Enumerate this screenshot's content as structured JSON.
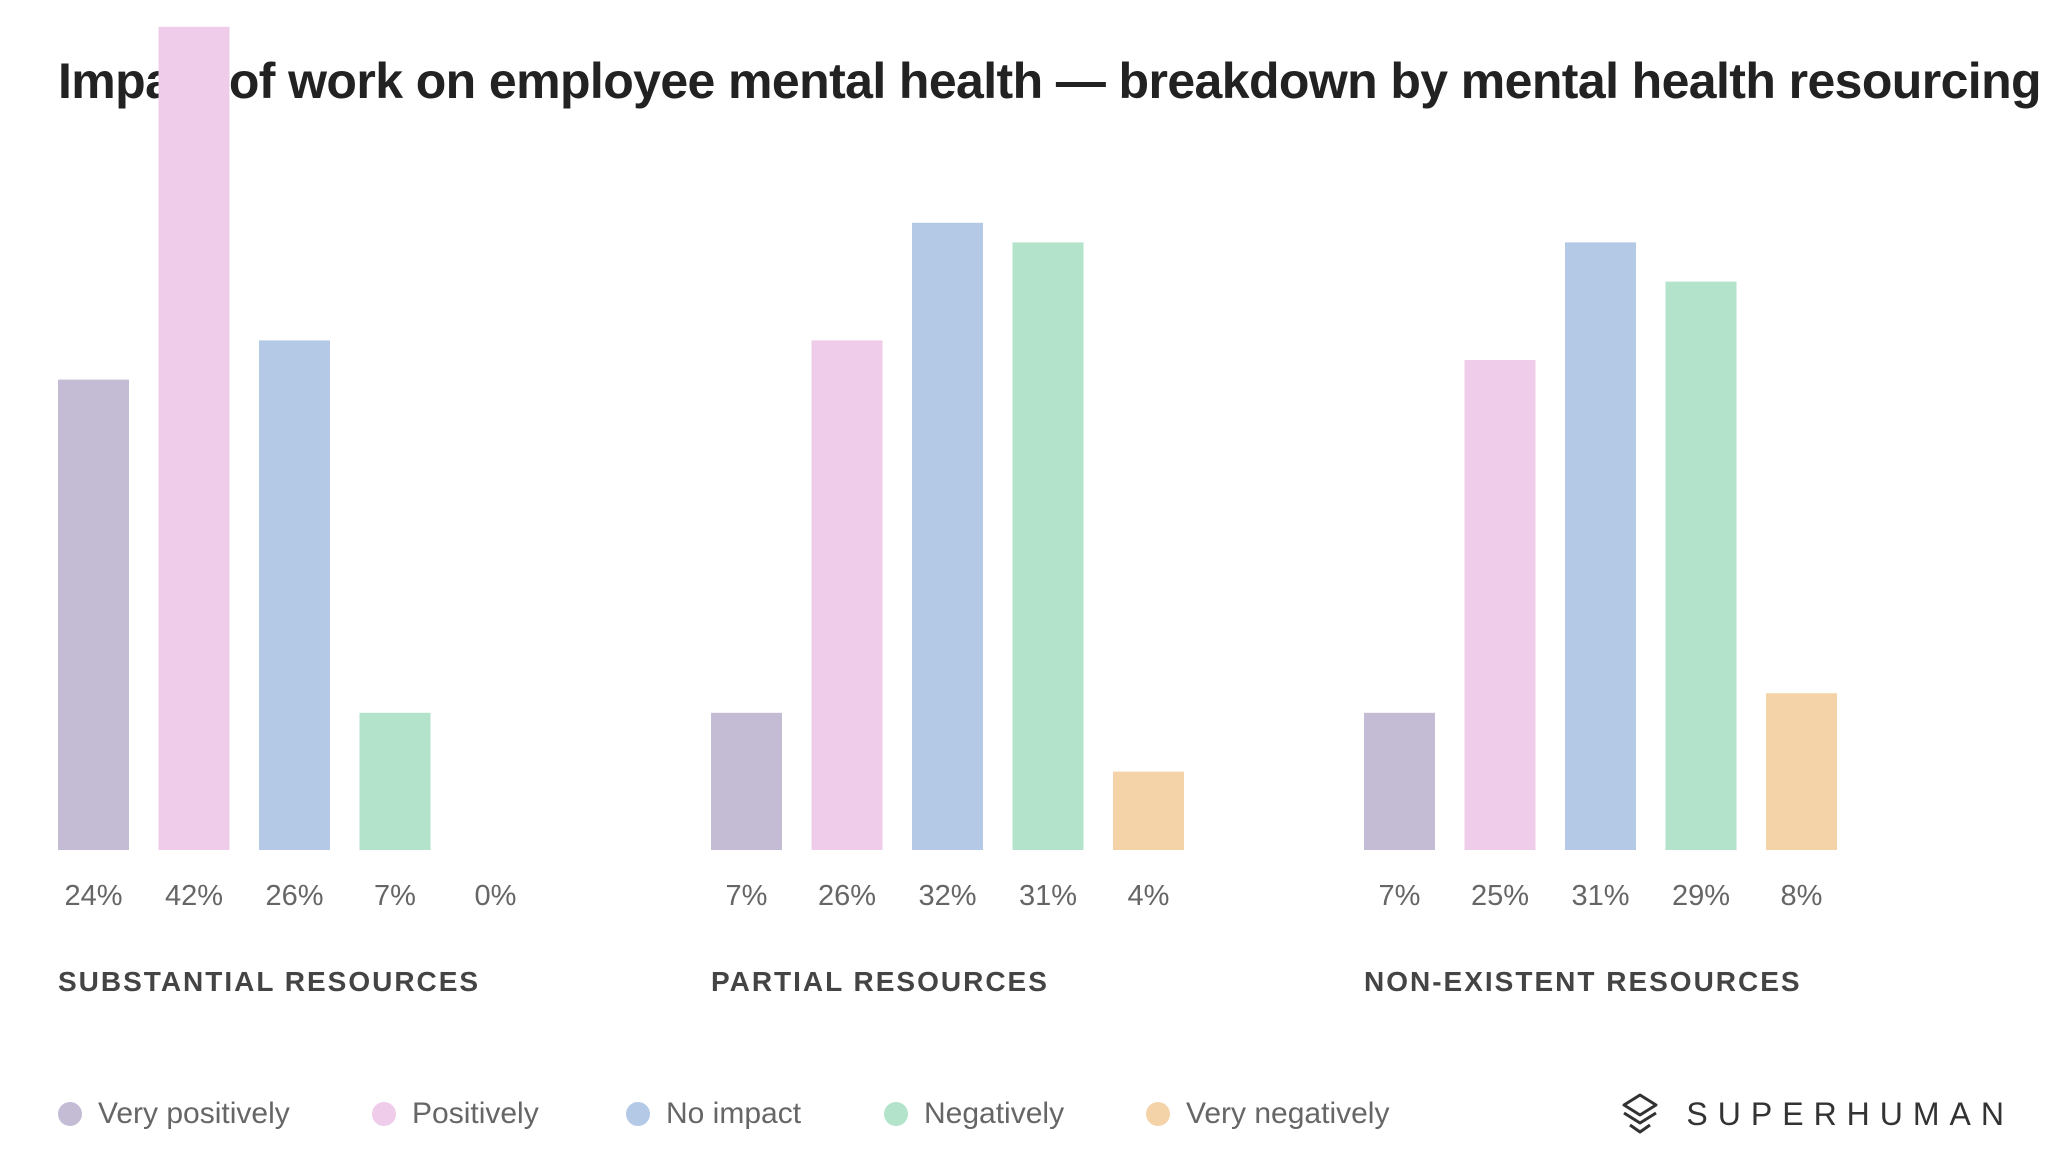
{
  "title": "Impact of work on employee mental health — breakdown by mental health resourcing",
  "brand": {
    "name": "SUPERHUMAN",
    "logo_icon": "superhuman-logo-icon"
  },
  "colors": {
    "Very positively": "#c4bcd4",
    "Positively": "#efcce9",
    "No impact": "#b3c9e5",
    "Negatively": "#b3e3ca",
    "Very negatively": "#f5d3a9",
    "value_label": "#666666",
    "group_label": "#444444"
  },
  "legend": [
    {
      "label": "Very positively"
    },
    {
      "label": "Positively"
    },
    {
      "label": "No impact"
    },
    {
      "label": "Negatively"
    },
    {
      "label": "Very negatively"
    }
  ],
  "chart_data": [
    {
      "type": "bar",
      "title": "SUBSTANTIAL RESOURCES",
      "categories": [
        "Very positively",
        "Positively",
        "No impact",
        "Negatively",
        "Very negatively"
      ],
      "values": [
        24,
        42,
        26,
        7,
        0
      ],
      "value_labels": [
        "24%",
        "42%",
        "26%",
        "7%",
        "0%"
      ],
      "unit": "%",
      "grid": false
    },
    {
      "type": "bar",
      "title": "PARTIAL RESOURCES",
      "categories": [
        "Very positively",
        "Positively",
        "No impact",
        "Negatively",
        "Very negatively"
      ],
      "values": [
        7,
        26,
        32,
        31,
        4
      ],
      "value_labels": [
        "7%",
        "26%",
        "32%",
        "31%",
        "4%"
      ],
      "unit": "%",
      "grid": false
    },
    {
      "type": "bar",
      "title": "NON-EXISTENT RESOURCES",
      "categories": [
        "Very positively",
        "Positively",
        "No impact",
        "Negatively",
        "Very negatively"
      ],
      "values": [
        7,
        25,
        31,
        29,
        8
      ],
      "value_labels": [
        "7%",
        "25%",
        "31%",
        "29%",
        "8%"
      ],
      "unit": "%",
      "grid": false
    }
  ]
}
